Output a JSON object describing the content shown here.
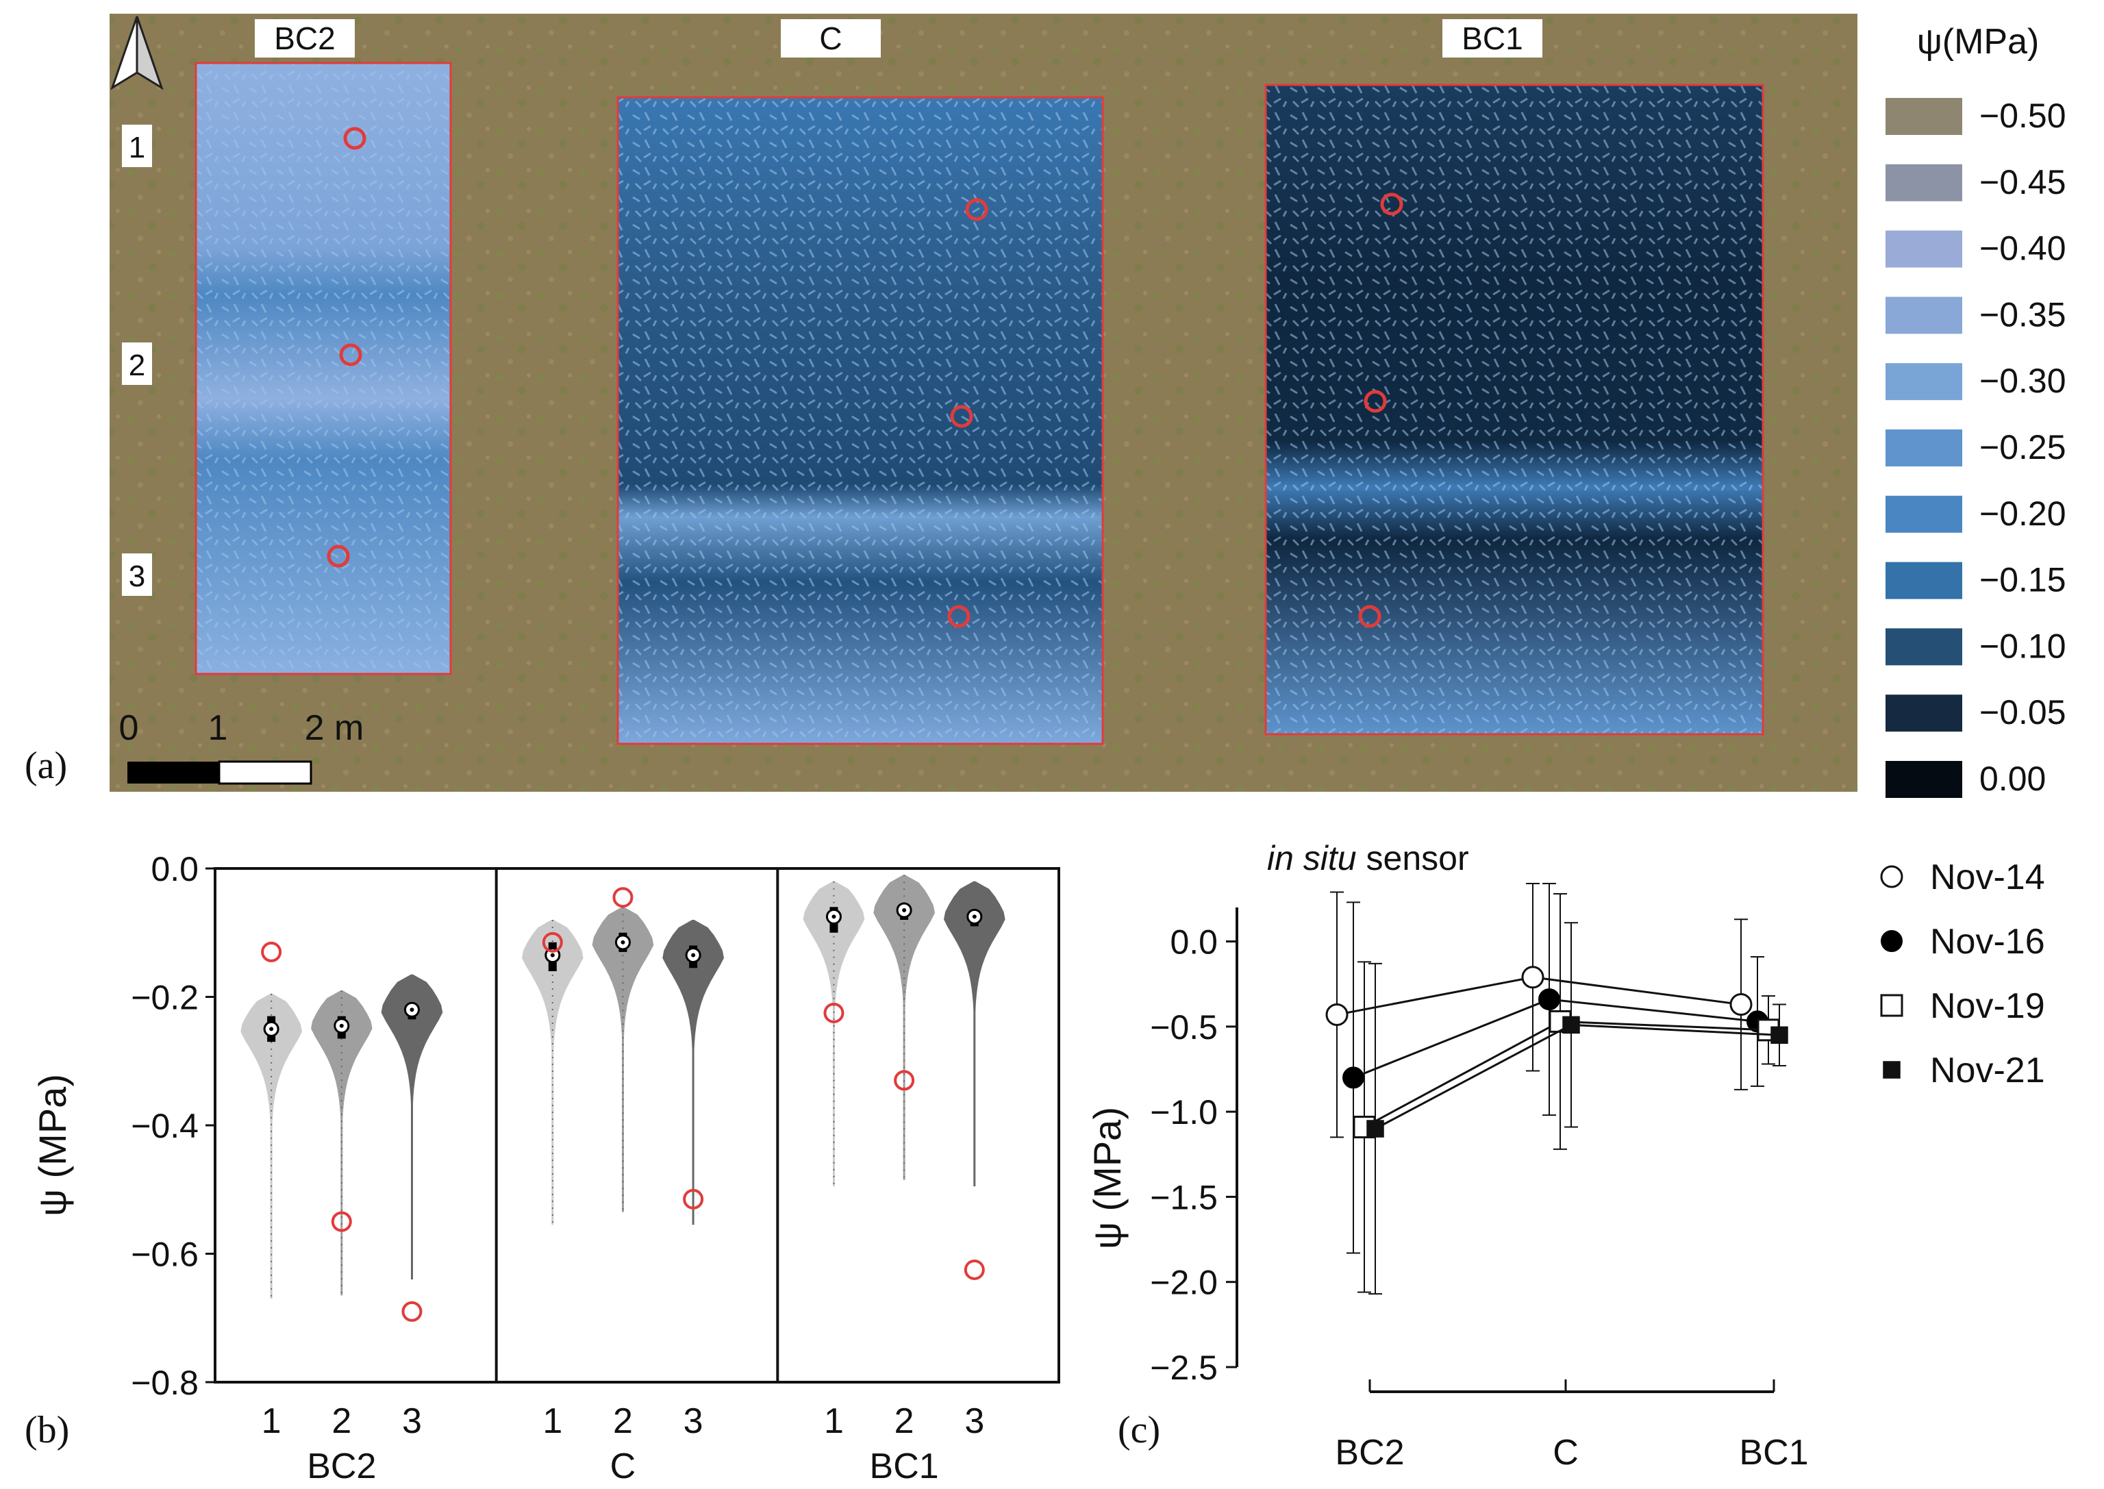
{
  "panel_a": {
    "label": "(a)",
    "plots": [
      {
        "name": "BC2",
        "rows": [
          "1",
          "2",
          "3"
        ]
      },
      {
        "name": "C"
      },
      {
        "name": "BC1"
      }
    ],
    "scale": {
      "ticks": [
        "0",
        "1",
        "2 m"
      ]
    },
    "north_arrow": "north-arrow-icon",
    "colors": {
      "soil": "#8a7a52",
      "plot_border": "#e23b3b",
      "sensor_marker": "#e23b3b"
    }
  },
  "legend": {
    "title": "ψ(MPa)",
    "items": [
      {
        "label": "−0.50",
        "color": "#8e8670"
      },
      {
        "label": "−0.45",
        "color": "#8c93a6"
      },
      {
        "label": "−0.40",
        "color": "#99abd6"
      },
      {
        "label": "−0.35",
        "color": "#89a8d8"
      },
      {
        "label": "−0.30",
        "color": "#79a4d6"
      },
      {
        "label": "−0.25",
        "color": "#5f95cc"
      },
      {
        "label": "−0.20",
        "color": "#4a86c1"
      },
      {
        "label": "−0.15",
        "color": "#3472a9"
      },
      {
        "label": "−0.10",
        "color": "#254f74"
      },
      {
        "label": "−0.05",
        "color": "#152a40"
      },
      {
        "label": "0.00",
        "color": "#050b12"
      }
    ]
  },
  "chart_data": [
    {
      "type": "violin",
      "label": "(b)",
      "ylabel": "ψ (MPa)",
      "ylim": [
        -0.8,
        0.0
      ],
      "yticks": [
        "0.0",
        "−0.2",
        "−0.4",
        "−0.6",
        "−0.8"
      ],
      "ytick_values": [
        0.0,
        -0.2,
        -0.4,
        -0.6,
        -0.8
      ],
      "groups": [
        {
          "name": "BC2",
          "categories": [
            "1",
            "2",
            "3"
          ],
          "medians": [
            -0.25,
            -0.245,
            -0.22
          ],
          "q1": [
            -0.27,
            -0.265,
            -0.235
          ],
          "q3": [
            -0.23,
            -0.23,
            -0.21
          ],
          "sensor": [
            -0.13,
            -0.55,
            -0.69
          ],
          "shades": [
            "#c8c8c8",
            "#9a9a9a",
            "#5f5f5f"
          ]
        },
        {
          "name": "C",
          "categories": [
            "1",
            "2",
            "3"
          ],
          "medians": [
            -0.135,
            -0.115,
            -0.135
          ],
          "q1": [
            -0.16,
            -0.13,
            -0.155
          ],
          "q3": [
            -0.115,
            -0.1,
            -0.12
          ],
          "sensor": [
            -0.115,
            -0.045,
            -0.515
          ],
          "shades": [
            "#c8c8c8",
            "#9a9a9a",
            "#5f5f5f"
          ]
        },
        {
          "name": "BC1",
          "categories": [
            "1",
            "2",
            "3"
          ],
          "medians": [
            -0.075,
            -0.065,
            -0.075
          ],
          "q1": [
            -0.1,
            -0.08,
            -0.09
          ],
          "q3": [
            -0.06,
            -0.055,
            -0.065
          ],
          "sensor": [
            -0.225,
            -0.33,
            -0.625
          ],
          "shades": [
            "#c8c8c8",
            "#9a9a9a",
            "#5f5f5f"
          ]
        }
      ]
    },
    {
      "type": "line",
      "label": "(c)",
      "title_italic": "in situ",
      "title_rest": " sensor",
      "ylabel": "ψ (MPa)",
      "ylim": [
        -2.5,
        0.3
      ],
      "yticks": [
        "0.0",
        "−0.5",
        "−1.0",
        "−1.5",
        "−2.0",
        "−2.5"
      ],
      "ytick_values": [
        0.0,
        -0.5,
        -1.0,
        -1.5,
        -2.0,
        -2.5
      ],
      "categories": [
        "BC2",
        "C",
        "BC1"
      ],
      "series": [
        {
          "name": "Nov-14",
          "marker": "open-circle",
          "values": [
            -0.43,
            -0.21,
            -0.37
          ],
          "err": [
            0.72,
            0.55,
            0.5
          ]
        },
        {
          "name": "Nov-16",
          "marker": "filled-circle",
          "values": [
            -0.8,
            -0.34,
            -0.47
          ],
          "err": [
            1.03,
            0.68,
            0.38
          ]
        },
        {
          "name": "Nov-19",
          "marker": "open-square",
          "values": [
            -1.09,
            -0.47,
            -0.52
          ],
          "err": [
            0.97,
            0.75,
            0.2
          ]
        },
        {
          "name": "Nov-21",
          "marker": "filled-square",
          "values": [
            -1.1,
            -0.49,
            -0.55
          ],
          "err": [
            0.97,
            0.6,
            0.18
          ]
        }
      ]
    }
  ]
}
